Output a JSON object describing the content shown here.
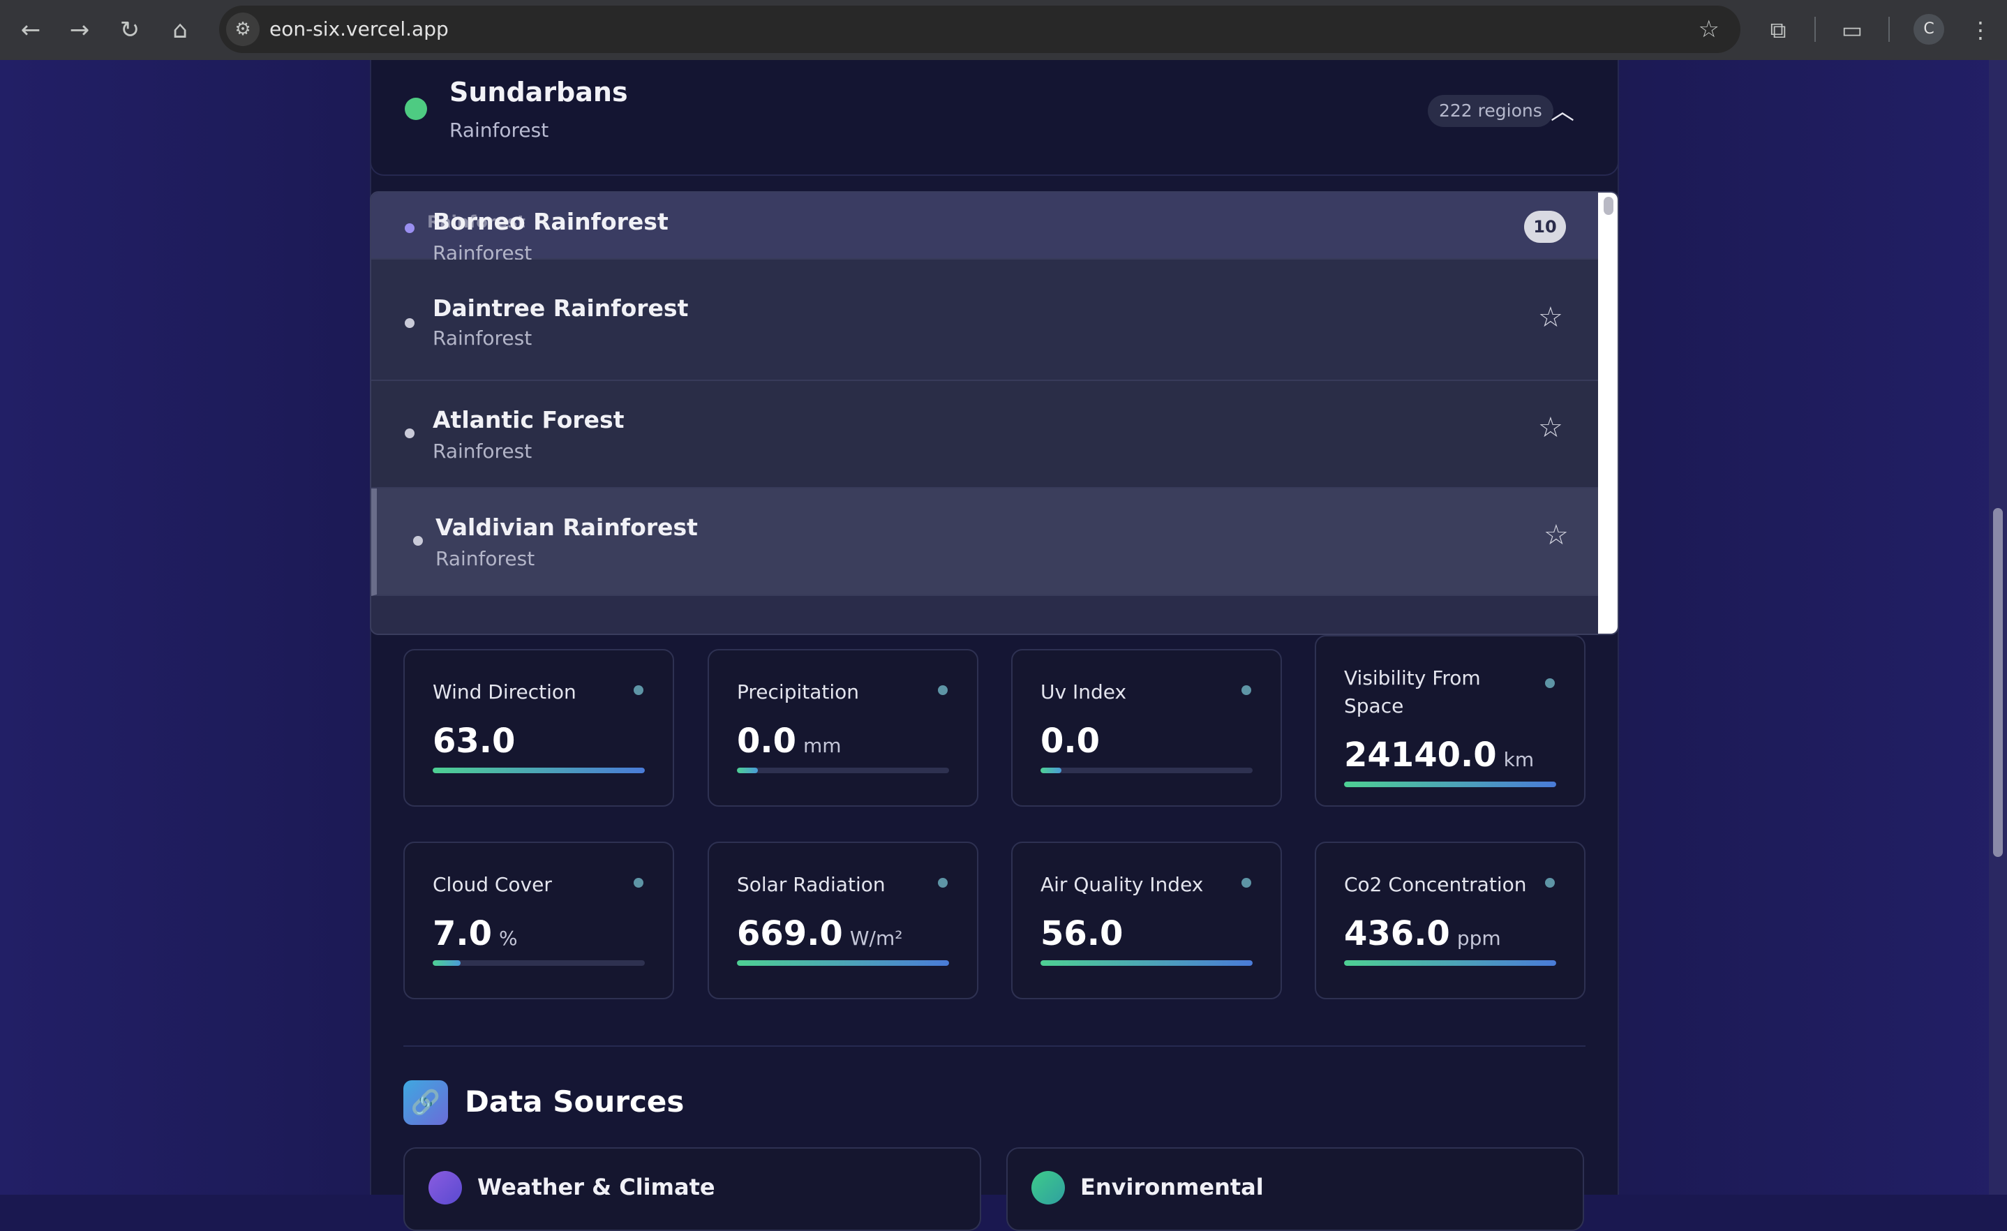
{
  "browser": {
    "url": "eon-six.vercel.app",
    "profile_initial": "C"
  },
  "location": {
    "name": "Sundarbans",
    "type": "Rainforest",
    "regions_badge": "222 regions",
    "accent_color": "#4ecb82"
  },
  "dropdown": {
    "ghost_label": "Rainforest",
    "count_badge": "10",
    "items": [
      {
        "name": "Borneo Rainforest",
        "type": "Rainforest"
      },
      {
        "name": "Daintree Rainforest",
        "type": "Rainforest"
      },
      {
        "name": "Atlantic Forest",
        "type": "Rainforest"
      },
      {
        "name": "Valdivian Rainforest",
        "type": "Rainforest"
      }
    ]
  },
  "metrics": [
    {
      "label": "Wind Direction",
      "value": "63.0",
      "unit": "",
      "fill": 1.0
    },
    {
      "label": "Precipitation",
      "value": "0.0",
      "unit": "mm",
      "fill": 0.1
    },
    {
      "label": "Uv Index",
      "value": "0.0",
      "unit": "",
      "fill": 0.1
    },
    {
      "label": "Visibility From Space",
      "value": "24140.0",
      "unit": "km",
      "fill": 1.0
    },
    {
      "label": "Cloud Cover",
      "value": "7.0",
      "unit": "%",
      "fill": 0.13
    },
    {
      "label": "Solar Radiation",
      "value": "669.0",
      "unit": "W/m²",
      "fill": 1.0
    },
    {
      "label": "Air Quality Index",
      "value": "56.0",
      "unit": "",
      "fill": 1.0
    },
    {
      "label": "Co2 Concentration",
      "value": "436.0",
      "unit": "ppm",
      "fill": 1.0
    }
  ],
  "data_sources": {
    "title": "Data Sources",
    "cards": [
      {
        "title": "Weather & Climate"
      },
      {
        "title": "Environmental"
      }
    ]
  }
}
